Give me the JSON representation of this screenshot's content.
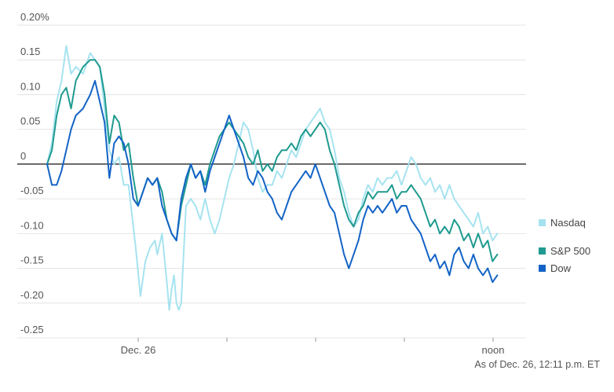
{
  "chart_data": {
    "type": "line",
    "title": "",
    "xlabel": "",
    "ylabel": "",
    "x_ticks": [
      "Dec. 26",
      "",
      "",
      "",
      "noon"
    ],
    "y_ticks": [
      "0.20%",
      "0.15",
      "0.10",
      "0.05",
      "0",
      "-0.05",
      "-0.10",
      "-0.15",
      "-0.20",
      "-0.25"
    ],
    "y_tick_values": [
      0.2,
      0.15,
      0.1,
      0.05,
      0,
      -0.05,
      -0.1,
      -0.15,
      -0.2,
      -0.25
    ],
    "ylim": [
      -0.25,
      0.2
    ],
    "xlim": [
      0,
      1
    ],
    "grid": true,
    "legend_position": "right",
    "footnote": "As of Dec. 26, 12:11 p.m. ET",
    "series": [
      {
        "name": "Nasdaq",
        "color": "#a6e3f0",
        "points": [
          [
            0.0,
            0.0
          ],
          [
            0.01,
            0.03
          ],
          [
            0.02,
            0.09
          ],
          [
            0.03,
            0.12
          ],
          [
            0.04,
            0.17
          ],
          [
            0.05,
            0.13
          ],
          [
            0.06,
            0.14
          ],
          [
            0.075,
            0.13
          ],
          [
            0.09,
            0.16
          ],
          [
            0.1,
            0.15
          ],
          [
            0.11,
            0.14
          ],
          [
            0.12,
            0.08
          ],
          [
            0.13,
            0.02
          ],
          [
            0.14,
            0.0
          ],
          [
            0.15,
            0.01
          ],
          [
            0.16,
            -0.03
          ],
          [
            0.17,
            -0.03
          ],
          [
            0.185,
            -0.12
          ],
          [
            0.195,
            -0.19
          ],
          [
            0.205,
            -0.14
          ],
          [
            0.215,
            -0.12
          ],
          [
            0.225,
            -0.11
          ],
          [
            0.23,
            -0.13
          ],
          [
            0.24,
            -0.1
          ],
          [
            0.25,
            -0.17
          ],
          [
            0.255,
            -0.21
          ],
          [
            0.26,
            -0.18
          ],
          [
            0.265,
            -0.16
          ],
          [
            0.27,
            -0.2
          ],
          [
            0.275,
            -0.21
          ],
          [
            0.28,
            -0.2
          ],
          [
            0.285,
            -0.13
          ],
          [
            0.29,
            -0.06
          ],
          [
            0.3,
            -0.05
          ],
          [
            0.31,
            -0.06
          ],
          [
            0.32,
            -0.08
          ],
          [
            0.33,
            -0.05
          ],
          [
            0.34,
            -0.08
          ],
          [
            0.35,
            -0.1
          ],
          [
            0.36,
            -0.08
          ],
          [
            0.37,
            -0.05
          ],
          [
            0.38,
            -0.02
          ],
          [
            0.39,
            0.0
          ],
          [
            0.4,
            0.03
          ],
          [
            0.41,
            0.06
          ],
          [
            0.42,
            0.05
          ],
          [
            0.43,
            0.02
          ],
          [
            0.44,
            -0.02
          ],
          [
            0.45,
            -0.04
          ],
          [
            0.46,
            -0.03
          ],
          [
            0.47,
            -0.03
          ],
          [
            0.48,
            -0.01
          ],
          [
            0.49,
            -0.02
          ],
          [
            0.5,
            0.0
          ],
          [
            0.51,
            0.02
          ],
          [
            0.52,
            0.01
          ],
          [
            0.53,
            0.03
          ],
          [
            0.54,
            0.05
          ],
          [
            0.55,
            0.06
          ],
          [
            0.56,
            0.07
          ],
          [
            0.57,
            0.08
          ],
          [
            0.58,
            0.06
          ],
          [
            0.59,
            0.05
          ],
          [
            0.6,
            0.02
          ],
          [
            0.61,
            -0.02
          ],
          [
            0.62,
            -0.04
          ],
          [
            0.63,
            -0.07
          ],
          [
            0.64,
            -0.09
          ],
          [
            0.65,
            -0.08
          ],
          [
            0.66,
            -0.05
          ],
          [
            0.67,
            -0.03
          ],
          [
            0.68,
            -0.04
          ],
          [
            0.69,
            -0.02
          ],
          [
            0.7,
            -0.03
          ],
          [
            0.71,
            -0.02
          ],
          [
            0.72,
            -0.02
          ],
          [
            0.73,
            -0.01
          ],
          [
            0.74,
            -0.03
          ],
          [
            0.75,
            -0.01
          ],
          [
            0.76,
            0.01
          ],
          [
            0.77,
            0.0
          ],
          [
            0.78,
            -0.02
          ],
          [
            0.79,
            -0.03
          ],
          [
            0.8,
            -0.02
          ],
          [
            0.81,
            -0.04
          ],
          [
            0.82,
            -0.03
          ],
          [
            0.83,
            -0.05
          ],
          [
            0.84,
            -0.03
          ],
          [
            0.85,
            -0.05
          ],
          [
            0.86,
            -0.06
          ],
          [
            0.87,
            -0.07
          ],
          [
            0.88,
            -0.08
          ],
          [
            0.89,
            -0.09
          ],
          [
            0.9,
            -0.07
          ],
          [
            0.91,
            -0.1
          ],
          [
            0.92,
            -0.09
          ],
          [
            0.93,
            -0.11
          ],
          [
            0.94,
            -0.1
          ]
        ]
      },
      {
        "name": "S&P 500",
        "color": "#1f9a90",
        "points": [
          [
            0.0,
            0.0
          ],
          [
            0.01,
            0.02
          ],
          [
            0.02,
            0.07
          ],
          [
            0.03,
            0.1
          ],
          [
            0.04,
            0.11
          ],
          [
            0.05,
            0.08
          ],
          [
            0.06,
            0.12
          ],
          [
            0.075,
            0.14
          ],
          [
            0.09,
            0.15
          ],
          [
            0.1,
            0.15
          ],
          [
            0.11,
            0.14
          ],
          [
            0.12,
            0.1
          ],
          [
            0.13,
            0.03
          ],
          [
            0.14,
            0.07
          ],
          [
            0.15,
            0.06
          ],
          [
            0.16,
            0.02
          ],
          [
            0.17,
            0.03
          ],
          [
            0.18,
            -0.02
          ],
          [
            0.19,
            -0.06
          ],
          [
            0.2,
            -0.04
          ],
          [
            0.21,
            -0.02
          ],
          [
            0.22,
            -0.03
          ],
          [
            0.23,
            -0.02
          ],
          [
            0.24,
            -0.04
          ],
          [
            0.25,
            -0.08
          ],
          [
            0.26,
            -0.1
          ],
          [
            0.27,
            -0.11
          ],
          [
            0.28,
            -0.06
          ],
          [
            0.29,
            -0.03
          ],
          [
            0.3,
            0.0
          ],
          [
            0.31,
            -0.02
          ],
          [
            0.32,
            -0.01
          ],
          [
            0.33,
            -0.03
          ],
          [
            0.34,
            0.0
          ],
          [
            0.35,
            0.02
          ],
          [
            0.36,
            0.04
          ],
          [
            0.37,
            0.05
          ],
          [
            0.38,
            0.06
          ],
          [
            0.39,
            0.05
          ],
          [
            0.4,
            0.04
          ],
          [
            0.41,
            0.03
          ],
          [
            0.42,
            0.01
          ],
          [
            0.43,
            0.0
          ],
          [
            0.44,
            0.02
          ],
          [
            0.45,
            -0.01
          ],
          [
            0.46,
            0.0
          ],
          [
            0.47,
            -0.01
          ],
          [
            0.48,
            0.01
          ],
          [
            0.49,
            0.02
          ],
          [
            0.5,
            0.02
          ],
          [
            0.51,
            0.03
          ],
          [
            0.52,
            0.02
          ],
          [
            0.53,
            0.04
          ],
          [
            0.54,
            0.05
          ],
          [
            0.55,
            0.04
          ],
          [
            0.56,
            0.05
          ],
          [
            0.57,
            0.06
          ],
          [
            0.58,
            0.05
          ],
          [
            0.59,
            0.02
          ],
          [
            0.6,
            0.0
          ],
          [
            0.61,
            -0.03
          ],
          [
            0.62,
            -0.06
          ],
          [
            0.63,
            -0.08
          ],
          [
            0.64,
            -0.09
          ],
          [
            0.65,
            -0.07
          ],
          [
            0.66,
            -0.06
          ],
          [
            0.67,
            -0.04
          ],
          [
            0.68,
            -0.05
          ],
          [
            0.69,
            -0.04
          ],
          [
            0.7,
            -0.04
          ],
          [
            0.71,
            -0.04
          ],
          [
            0.72,
            -0.03
          ],
          [
            0.73,
            -0.05
          ],
          [
            0.74,
            -0.04
          ],
          [
            0.75,
            -0.04
          ],
          [
            0.76,
            -0.03
          ],
          [
            0.77,
            -0.04
          ],
          [
            0.78,
            -0.05
          ],
          [
            0.79,
            -0.07
          ],
          [
            0.8,
            -0.09
          ],
          [
            0.81,
            -0.08
          ],
          [
            0.82,
            -0.1
          ],
          [
            0.83,
            -0.09
          ],
          [
            0.84,
            -0.1
          ],
          [
            0.85,
            -0.08
          ],
          [
            0.86,
            -0.09
          ],
          [
            0.87,
            -0.11
          ],
          [
            0.88,
            -0.1
          ],
          [
            0.89,
            -0.12
          ],
          [
            0.9,
            -0.1
          ],
          [
            0.91,
            -0.12
          ],
          [
            0.92,
            -0.11
          ],
          [
            0.93,
            -0.14
          ],
          [
            0.94,
            -0.13
          ]
        ]
      },
      {
        "name": "Dow",
        "color": "#1363c6",
        "points": [
          [
            0.0,
            0.0
          ],
          [
            0.01,
            -0.03
          ],
          [
            0.02,
            -0.03
          ],
          [
            0.03,
            -0.01
          ],
          [
            0.04,
            0.02
          ],
          [
            0.05,
            0.05
          ],
          [
            0.06,
            0.07
          ],
          [
            0.075,
            0.08
          ],
          [
            0.09,
            0.1
          ],
          [
            0.1,
            0.12
          ],
          [
            0.11,
            0.09
          ],
          [
            0.12,
            0.06
          ],
          [
            0.13,
            -0.02
          ],
          [
            0.14,
            0.03
          ],
          [
            0.15,
            0.04
          ],
          [
            0.16,
            0.03
          ],
          [
            0.17,
            0.0
          ],
          [
            0.18,
            -0.05
          ],
          [
            0.19,
            -0.06
          ],
          [
            0.2,
            -0.04
          ],
          [
            0.21,
            -0.02
          ],
          [
            0.22,
            -0.03
          ],
          [
            0.23,
            -0.02
          ],
          [
            0.24,
            -0.06
          ],
          [
            0.25,
            -0.08
          ],
          [
            0.26,
            -0.1
          ],
          [
            0.27,
            -0.11
          ],
          [
            0.28,
            -0.05
          ],
          [
            0.29,
            -0.02
          ],
          [
            0.3,
            0.0
          ],
          [
            0.31,
            -0.02
          ],
          [
            0.32,
            -0.01
          ],
          [
            0.33,
            -0.04
          ],
          [
            0.34,
            -0.01
          ],
          [
            0.35,
            0.01
          ],
          [
            0.36,
            0.03
          ],
          [
            0.37,
            0.05
          ],
          [
            0.38,
            0.07
          ],
          [
            0.39,
            0.05
          ],
          [
            0.4,
            0.03
          ],
          [
            0.41,
            0.01
          ],
          [
            0.42,
            -0.02
          ],
          [
            0.43,
            -0.03
          ],
          [
            0.44,
            -0.01
          ],
          [
            0.45,
            -0.02
          ],
          [
            0.46,
            -0.04
          ],
          [
            0.47,
            -0.05
          ],
          [
            0.48,
            -0.07
          ],
          [
            0.49,
            -0.08
          ],
          [
            0.5,
            -0.06
          ],
          [
            0.51,
            -0.04
          ],
          [
            0.52,
            -0.03
          ],
          [
            0.53,
            -0.02
          ],
          [
            0.54,
            -0.01
          ],
          [
            0.55,
            -0.02
          ],
          [
            0.56,
            0.0
          ],
          [
            0.57,
            -0.02
          ],
          [
            0.58,
            -0.04
          ],
          [
            0.59,
            -0.06
          ],
          [
            0.6,
            -0.07
          ],
          [
            0.61,
            -0.1
          ],
          [
            0.62,
            -0.13
          ],
          [
            0.63,
            -0.15
          ],
          [
            0.64,
            -0.13
          ],
          [
            0.65,
            -0.11
          ],
          [
            0.66,
            -0.08
          ],
          [
            0.67,
            -0.06
          ],
          [
            0.68,
            -0.07
          ],
          [
            0.69,
            -0.06
          ],
          [
            0.7,
            -0.07
          ],
          [
            0.71,
            -0.06
          ],
          [
            0.72,
            -0.05
          ],
          [
            0.73,
            -0.07
          ],
          [
            0.74,
            -0.06
          ],
          [
            0.75,
            -0.06
          ],
          [
            0.76,
            -0.08
          ],
          [
            0.77,
            -0.09
          ],
          [
            0.78,
            -0.1
          ],
          [
            0.79,
            -0.12
          ],
          [
            0.8,
            -0.14
          ],
          [
            0.81,
            -0.13
          ],
          [
            0.82,
            -0.15
          ],
          [
            0.83,
            -0.14
          ],
          [
            0.84,
            -0.16
          ],
          [
            0.85,
            -0.13
          ],
          [
            0.86,
            -0.12
          ],
          [
            0.87,
            -0.14
          ],
          [
            0.88,
            -0.15
          ],
          [
            0.89,
            -0.13
          ],
          [
            0.9,
            -0.15
          ],
          [
            0.91,
            -0.16
          ],
          [
            0.92,
            -0.15
          ],
          [
            0.93,
            -0.17
          ],
          [
            0.94,
            -0.16
          ]
        ]
      }
    ]
  }
}
